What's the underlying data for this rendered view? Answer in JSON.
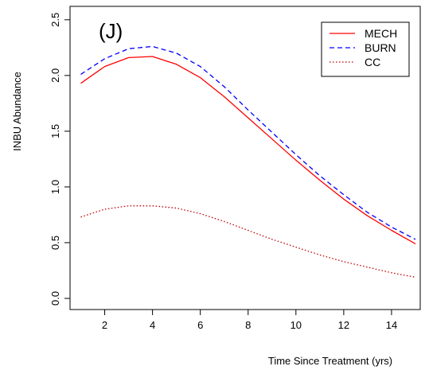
{
  "chart_data": {
    "type": "line",
    "panel_label": "(J)",
    "xlabel": "Time Since Treatment (yrs)",
    "ylabel": "INBU Abundance",
    "xlim": [
      0.55,
      15.2
    ],
    "ylim": [
      -0.1,
      2.62
    ],
    "xticks": [
      2,
      4,
      6,
      8,
      10,
      12,
      14
    ],
    "xtick_labels": [
      "2",
      "4",
      "6",
      "8",
      "10",
      "12",
      "14"
    ],
    "yticks": [
      0.0,
      0.5,
      1.0,
      1.5,
      2.0,
      2.5
    ],
    "ytick_labels": [
      "0.0",
      "0.5",
      "1.0",
      "1.5",
      "2.0",
      "2.5"
    ],
    "legend_position": "top-right",
    "x": [
      1,
      2,
      3,
      4,
      5,
      6,
      7,
      8,
      9,
      10,
      11,
      12,
      13,
      14,
      15
    ],
    "series": [
      {
        "name": "MECH",
        "color": "#ff0000",
        "dash": "solid",
        "values": [
          1.93,
          2.08,
          2.16,
          2.17,
          2.1,
          1.98,
          1.81,
          1.62,
          1.43,
          1.24,
          1.06,
          0.89,
          0.74,
          0.61,
          0.49
        ]
      },
      {
        "name": "BURN",
        "color": "#0000ff",
        "dash": "dashed",
        "values": [
          2.01,
          2.15,
          2.24,
          2.26,
          2.2,
          2.08,
          1.9,
          1.69,
          1.49,
          1.29,
          1.1,
          0.93,
          0.77,
          0.64,
          0.53
        ]
      },
      {
        "name": "CC",
        "color": "#c00000",
        "dash": "dotted",
        "values": [
          0.73,
          0.8,
          0.83,
          0.83,
          0.81,
          0.76,
          0.69,
          0.61,
          0.53,
          0.46,
          0.39,
          0.33,
          0.28,
          0.23,
          0.19
        ]
      }
    ]
  }
}
